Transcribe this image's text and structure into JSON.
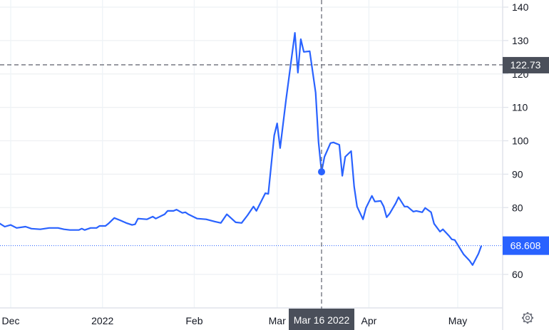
{
  "chart_data": {
    "type": "line",
    "title": "",
    "xlabel": "",
    "ylabel": "",
    "ylim": [
      60,
      140
    ],
    "yticks": [
      "140",
      "130",
      "120",
      "110",
      "100",
      "90",
      "80",
      "60"
    ],
    "xticks": [
      "Dec",
      "2022",
      "Feb",
      "Mar",
      "Apr",
      "May"
    ],
    "xtick_dates": [
      "2021-12-01",
      "2022-01-01",
      "2022-02-01",
      "2022-03-01",
      "2022-04-01",
      "2022-05-01"
    ],
    "grid": true,
    "line_color": "#2962ff",
    "crosshair": {
      "date_label": "Mar 16 2022",
      "date": "2022-03-16",
      "price_label": "122.73",
      "price": 122.73,
      "hover_point_value": 90.7
    },
    "last_value_label": "68.608",
    "last_value": 68.608,
    "series": [
      {
        "points": [
          [
            "2021-11-27",
            75.4
          ],
          [
            "2021-11-29",
            74.3
          ],
          [
            "2021-12-01",
            74.8
          ],
          [
            "2021-12-03",
            73.9
          ],
          [
            "2021-12-06",
            74.3
          ],
          [
            "2021-12-08",
            73.7
          ],
          [
            "2021-12-11",
            73.5
          ],
          [
            "2021-12-14",
            73.9
          ],
          [
            "2021-12-17",
            73.9
          ],
          [
            "2021-12-19",
            73.5
          ],
          [
            "2021-12-21",
            73.3
          ],
          [
            "2021-12-24",
            73.3
          ],
          [
            "2021-12-25",
            73.7
          ],
          [
            "2021-12-26",
            73.3
          ],
          [
            "2021-12-28",
            73.9
          ],
          [
            "2021-12-30",
            73.9
          ],
          [
            "2021-12-31",
            74.5
          ],
          [
            "2022-01-02",
            74.5
          ],
          [
            "2022-01-03",
            75.2
          ],
          [
            "2022-01-05",
            76.9
          ],
          [
            "2022-01-07",
            76.2
          ],
          [
            "2022-01-09",
            75.4
          ],
          [
            "2022-01-11",
            74.8
          ],
          [
            "2022-01-12",
            75.0
          ],
          [
            "2022-01-13",
            76.7
          ],
          [
            "2022-01-16",
            76.5
          ],
          [
            "2022-01-18",
            77.3
          ],
          [
            "2022-01-19",
            76.7
          ],
          [
            "2022-01-22",
            78.0
          ],
          [
            "2022-01-23",
            79.0
          ],
          [
            "2022-01-25",
            79.0
          ],
          [
            "2022-01-26",
            79.4
          ],
          [
            "2022-01-28",
            78.4
          ],
          [
            "2022-01-29",
            78.6
          ],
          [
            "2022-01-30",
            78.0
          ],
          [
            "2022-02-02",
            76.7
          ],
          [
            "2022-02-05",
            76.5
          ],
          [
            "2022-02-08",
            75.8
          ],
          [
            "2022-02-10",
            75.4
          ],
          [
            "2022-02-12",
            78.0
          ],
          [
            "2022-02-15",
            75.6
          ],
          [
            "2022-02-17",
            75.4
          ],
          [
            "2022-02-19",
            77.7
          ],
          [
            "2022-02-21",
            80.3
          ],
          [
            "2022-02-22",
            79.0
          ],
          [
            "2022-02-25",
            84.3
          ],
          [
            "2022-02-26",
            84.1
          ],
          [
            "2022-02-28",
            101.6
          ],
          [
            "2022-03-01",
            105.2
          ],
          [
            "2022-03-02",
            97.8
          ],
          [
            "2022-03-04",
            112.3
          ],
          [
            "2022-03-07",
            132.3
          ],
          [
            "2022-03-08",
            120.4
          ],
          [
            "2022-03-09",
            130.4
          ],
          [
            "2022-03-10",
            126.6
          ],
          [
            "2022-03-12",
            126.8
          ],
          [
            "2022-03-14",
            114.4
          ],
          [
            "2022-03-15",
            99.5
          ],
          [
            "2022-03-16",
            90.7
          ],
          [
            "2022-03-17",
            95.2
          ],
          [
            "2022-03-19",
            99.3
          ],
          [
            "2022-03-20",
            99.5
          ],
          [
            "2022-03-22",
            98.8
          ],
          [
            "2022-03-23",
            89.5
          ],
          [
            "2022-03-24",
            95.2
          ],
          [
            "2022-03-26",
            96.9
          ],
          [
            "2022-03-27",
            86.3
          ],
          [
            "2022-03-28",
            80.3
          ],
          [
            "2022-03-30",
            76.5
          ],
          [
            "2022-03-31",
            79.9
          ],
          [
            "2022-04-02",
            83.5
          ],
          [
            "2022-04-03",
            81.8
          ],
          [
            "2022-04-05",
            82.0
          ],
          [
            "2022-04-06",
            80.3
          ],
          [
            "2022-04-07",
            77.1
          ],
          [
            "2022-04-08",
            78.2
          ],
          [
            "2022-04-10",
            81.2
          ],
          [
            "2022-04-11",
            83.1
          ],
          [
            "2022-04-13",
            80.3
          ],
          [
            "2022-04-14",
            80.3
          ],
          [
            "2022-04-16",
            78.8
          ],
          [
            "2022-04-17",
            79.0
          ],
          [
            "2022-04-19",
            78.6
          ],
          [
            "2022-04-20",
            79.9
          ],
          [
            "2022-04-22",
            78.6
          ],
          [
            "2022-04-23",
            75.2
          ],
          [
            "2022-04-25",
            72.8
          ],
          [
            "2022-04-26",
            73.5
          ],
          [
            "2022-04-28",
            71.6
          ],
          [
            "2022-04-29",
            70.5
          ],
          [
            "2022-04-30",
            70.3
          ],
          [
            "2022-05-03",
            66.0
          ],
          [
            "2022-05-05",
            64.1
          ],
          [
            "2022-05-06",
            62.8
          ],
          [
            "2022-05-08",
            66.2
          ],
          [
            "2022-05-09",
            68.608
          ]
        ]
      }
    ]
  },
  "settings_icon": "gear-icon"
}
